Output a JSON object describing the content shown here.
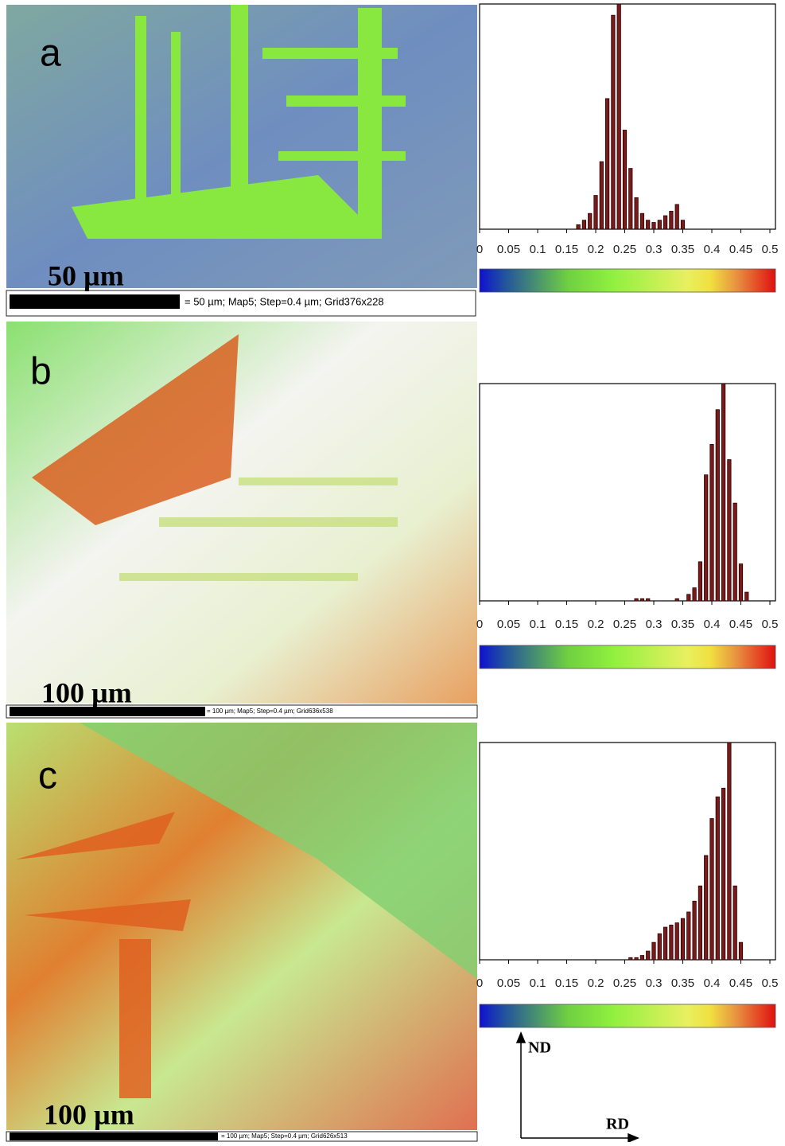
{
  "chart_data": [
    {
      "type": "bar",
      "color": "#7a1a1a",
      "x": [
        0.17,
        0.18,
        0.19,
        0.2,
        0.21,
        0.22,
        0.23,
        0.24,
        0.25,
        0.26,
        0.27,
        0.28,
        0.29,
        0.3,
        0.31,
        0.32,
        0.33,
        0.34,
        0.35
      ],
      "values": [
        2,
        4,
        7,
        15,
        30,
        58,
        95,
        100,
        44,
        27,
        14,
        7,
        4,
        3,
        4,
        6,
        8,
        11,
        4
      ],
      "xlim": [
        0,
        0.5
      ],
      "ylim": [
        0,
        100
      ],
      "xticks": [
        0,
        0.05,
        0.1,
        0.15,
        0.2,
        0.25,
        0.3,
        0.35,
        0.4,
        0.45,
        0.5
      ]
    },
    {
      "type": "bar",
      "color": "#7a1a1a",
      "x": [
        0.27,
        0.28,
        0.29,
        0.34,
        0.36,
        0.37,
        0.38,
        0.39,
        0.4,
        0.41,
        0.42,
        0.43,
        0.44,
        0.45,
        0.46
      ],
      "values": [
        1,
        1,
        1,
        1,
        3,
        6,
        18,
        58,
        72,
        88,
        100,
        65,
        45,
        17,
        4
      ],
      "xlim": [
        0,
        0.5
      ],
      "ylim": [
        0,
        100
      ],
      "xticks": [
        0,
        0.05,
        0.1,
        0.15,
        0.2,
        0.25,
        0.3,
        0.35,
        0.4,
        0.45,
        0.5
      ]
    },
    {
      "type": "bar",
      "color": "#7a1a1a",
      "x": [
        0.26,
        0.27,
        0.28,
        0.29,
        0.3,
        0.31,
        0.32,
        0.33,
        0.34,
        0.35,
        0.36,
        0.37,
        0.38,
        0.39,
        0.4,
        0.41,
        0.42,
        0.43,
        0.44,
        0.45
      ],
      "values": [
        1,
        1,
        2,
        4,
        8,
        12,
        15,
        16,
        17,
        19,
        22,
        27,
        34,
        48,
        65,
        75,
        79,
        100,
        34,
        8
      ],
      "xlim": [
        0,
        0.5
      ],
      "ylim": [
        0,
        100
      ],
      "xticks": [
        0,
        0.05,
        0.1,
        0.15,
        0.2,
        0.25,
        0.3,
        0.35,
        0.4,
        0.45,
        0.5
      ]
    }
  ],
  "panels": [
    {
      "label": "a",
      "scale_bar": "50 µm",
      "caption": "= 50 µm; Map5; Step=0.4 µm; Grid376x228"
    },
    {
      "label": "b",
      "scale_bar": "100 µm",
      "caption": "= 100 µm; Map5; Step=0.4 µm; Grid636x538"
    },
    {
      "label": "c",
      "scale_bar": "100 µm",
      "caption": "= 100 µm; Map5; Step=0.4 µm; Grid626x513"
    }
  ],
  "axes_labels": {
    "nd": "ND",
    "rd": "RD"
  }
}
